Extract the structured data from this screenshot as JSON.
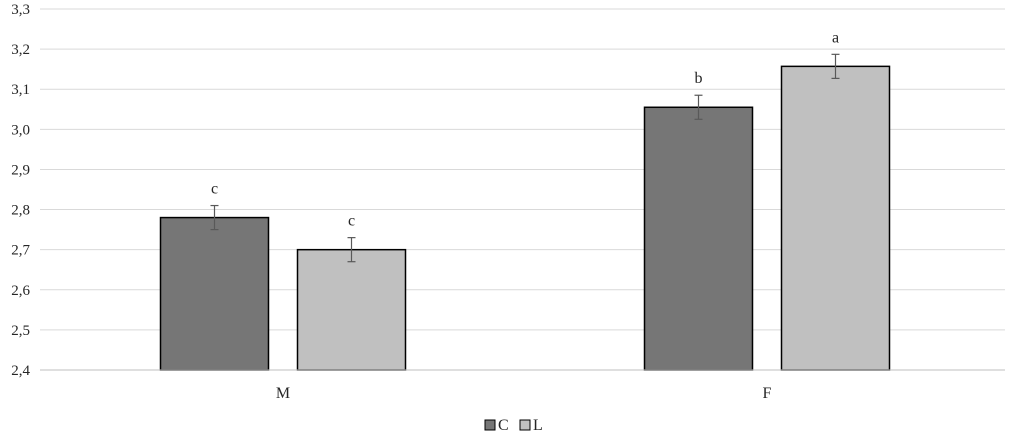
{
  "chart_data": {
    "type": "bar",
    "title": "",
    "xlabel": "",
    "ylabel": "",
    "categories": [
      "M",
      "F"
    ],
    "series": [
      {
        "name": "C",
        "color": "#767676",
        "values": [
          2.78,
          3.055
        ],
        "errors": [
          0.03,
          0.03
        ],
        "labels": [
          "c",
          "b"
        ]
      },
      {
        "name": "L",
        "color": "#c0c0c0",
        "values": [
          2.7,
          3.157
        ],
        "errors": [
          0.03,
          0.03
        ],
        "labels": [
          "c",
          "a"
        ]
      }
    ],
    "ylim": [
      2.4,
      3.3
    ],
    "yticks": [
      2.4,
      2.5,
      2.6,
      2.7,
      2.8,
      2.9,
      3.0,
      3.1,
      3.2,
      3.3
    ],
    "ytick_labels": [
      "2,4",
      "2,5",
      "2,6",
      "2,7",
      "2,8",
      "2,9",
      "3,0",
      "3,1",
      "3,2",
      "3,3"
    ],
    "grid": true,
    "legend_position": "bottom",
    "colors": {
      "grid": "#d9d9d9",
      "axis": "#bfbfbf",
      "bar_edge": "#000000",
      "error_bar": "#595959",
      "text": "#262626"
    }
  }
}
